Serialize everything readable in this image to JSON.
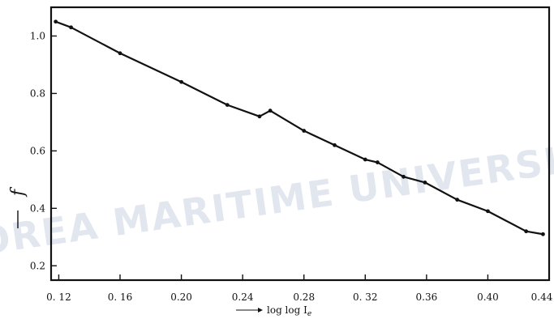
{
  "chart_data": {
    "type": "line",
    "xlabel": "log log I",
    "xlabel_subscript": "e",
    "ylabel": "f",
    "xlim": [
      0.115,
      0.44
    ],
    "ylim": [
      0.15,
      1.1
    ],
    "x_ticks": [
      0.12,
      0.16,
      0.2,
      0.24,
      0.28,
      0.32,
      0.36,
      0.4,
      0.44
    ],
    "x_tick_labels": [
      "0. 12",
      "0. 16",
      "0.20",
      "0.24",
      "0.28",
      "0. 32",
      "0.36",
      "0.40",
      "0.44"
    ],
    "y_ticks": [
      0.2,
      0.4,
      0.6,
      0.8,
      1.0
    ],
    "y_tick_labels": [
      "0.2",
      "0.4",
      "0.6",
      "0.8",
      "1.0"
    ],
    "grid": false,
    "series": [
      {
        "x": [
          0.118,
          0.128,
          0.16,
          0.2,
          0.23,
          0.251,
          0.258,
          0.28,
          0.3,
          0.32,
          0.328,
          0.345,
          0.359,
          0.38,
          0.4,
          0.425,
          0.436
        ],
        "y": [
          1.05,
          1.03,
          0.94,
          0.84,
          0.76,
          0.72,
          0.74,
          0.67,
          0.62,
          0.57,
          0.56,
          0.51,
          0.49,
          0.43,
          0.39,
          0.32,
          0.31
        ]
      }
    ]
  },
  "watermark": "KOREA MARITIME UNIVERSITY"
}
